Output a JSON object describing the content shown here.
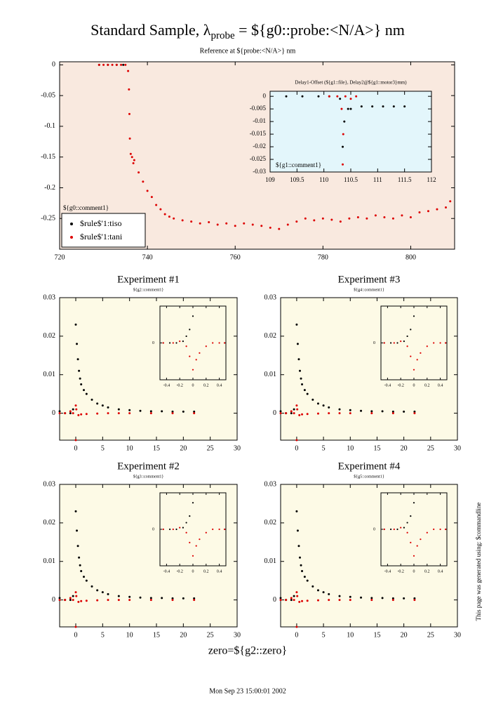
{
  "header": {
    "title": "Standard Sample, λ",
    "title_sub": "probe",
    "title_end": " = ${g0::probe:<N/A>} nm",
    "subtitle": "Reference at ${probe:<N/A>} nm"
  },
  "footer": {
    "zero": "zero=${g2::zero}",
    "date": "Mon Sep 23 15:00:01 2002",
    "side": "This page was generated using: $commandline"
  },
  "chart_data": [
    {
      "type": "scatter",
      "background": "#f9e9df",
      "comment": "${g0::comment1}",
      "legend": "lower left",
      "xlim": [
        720,
        810
      ],
      "ylim": [
        -0.3,
        0.005
      ],
      "xticks": [
        720,
        740,
        760,
        780,
        800
      ],
      "yticks": [
        0,
        -0.05,
        -0.1,
        -0.15,
        -0.2,
        -0.25
      ],
      "series": [
        {
          "name": "$rule$'1:tiso",
          "color": "#000000",
          "x": [
            729,
            731,
            733,
            734.5
          ],
          "values": [
            0,
            0,
            0,
            0
          ]
        },
        {
          "name": "$rule$'1:tani",
          "color": "#dd0000",
          "x": [
            729,
            730,
            731,
            732,
            733,
            734,
            735,
            735.6,
            735.8,
            735.9,
            736,
            736.2,
            736.5,
            736.8,
            737,
            738,
            739,
            740,
            741,
            742,
            743,
            744,
            745,
            746,
            748,
            750,
            752,
            754,
            756,
            758,
            760,
            762,
            764,
            766,
            768,
            770,
            772,
            774,
            776,
            778,
            780,
            782,
            784,
            786,
            788,
            790,
            792,
            794,
            796,
            798,
            800,
            802,
            804,
            806,
            808,
            809
          ],
          "values": [
            0,
            0,
            0,
            0,
            0,
            0,
            0,
            -0.01,
            -0.04,
            -0.08,
            -0.12,
            -0.145,
            -0.15,
            -0.16,
            -0.155,
            -0.175,
            -0.19,
            -0.205,
            -0.215,
            -0.228,
            -0.235,
            -0.243,
            -0.247,
            -0.25,
            -0.253,
            -0.255,
            -0.258,
            -0.256,
            -0.26,
            -0.258,
            -0.262,
            -0.258,
            -0.26,
            -0.262,
            -0.265,
            -0.267,
            -0.26,
            -0.255,
            -0.25,
            -0.253,
            -0.25,
            -0.252,
            -0.255,
            -0.25,
            -0.248,
            -0.25,
            -0.245,
            -0.248,
            -0.25,
            -0.245,
            -0.248,
            -0.24,
            -0.238,
            -0.235,
            -0.232,
            -0.222
          ]
        }
      ]
    },
    {
      "type": "scatter",
      "background": "#e3f6fb",
      "title": "Delay1-Offset (${g1::file}, Delay2@${g1::motor3}mm)",
      "comment": "${g1::comment1}",
      "xlim": [
        109,
        112
      ],
      "ylim": [
        -0.03,
        0.002
      ],
      "xticks": [
        109,
        109.5,
        110,
        110.5,
        111,
        111.5,
        112
      ],
      "yticks": [
        0,
        -0.005,
        -0.01,
        -0.015,
        -0.02,
        -0.025,
        -0.03
      ],
      "series": [
        {
          "color": "#000000",
          "x": [
            109.3,
            109.6,
            109.9,
            110.1,
            110.3,
            110.35,
            110.38,
            110.45,
            110.5,
            110.7,
            110.9,
            111.1,
            111.3,
            111.5
          ],
          "values": [
            0,
            0,
            0,
            0,
            -0.001,
            -0.02,
            -0.01,
            -0.005,
            -0.005,
            -0.004,
            -0.004,
            -0.004,
            -0.004,
            -0.004
          ]
        },
        {
          "color": "#dd0000",
          "x": [
            110.1,
            110.25,
            110.33,
            110.35,
            110.36,
            110.4,
            110.5,
            110.6
          ],
          "values": [
            0,
            0,
            -0.005,
            -0.027,
            -0.015,
            0,
            -0.001,
            0
          ]
        }
      ]
    },
    {
      "type": "scatter",
      "background": "#fdfae6",
      "title": "Experiment #1",
      "subtitle": "${g2::comment1}",
      "xlim": [
        -3,
        30
      ],
      "ylim": [
        -0.007,
        0.03
      ],
      "xticks": [
        0,
        5,
        10,
        15,
        20,
        25,
        30
      ],
      "yticks": [
        0,
        0.01,
        0.02,
        0.03
      ],
      "series": [
        {
          "color": "#000000",
          "x": [
            -3,
            -2,
            -1,
            -0.5,
            0,
            0.2,
            0.4,
            0.6,
            0.8,
            1,
            1.5,
            2,
            3,
            4,
            5,
            6,
            8,
            10,
            12,
            14,
            16,
            18,
            20,
            22
          ],
          "values": [
            0.0005,
            0,
            0,
            0.001,
            0.023,
            0.018,
            0.014,
            0.011,
            0.009,
            0.0075,
            0.006,
            0.005,
            0.0035,
            0.0025,
            0.002,
            0.0015,
            0.001,
            0.0008,
            0.0006,
            0.0005,
            0.0005,
            0.0004,
            0.0004,
            0.0004
          ]
        },
        {
          "color": "#dd0000",
          "x": [
            -3,
            -2,
            -1,
            -0.5,
            0,
            0,
            0.1,
            0.5,
            1,
            2,
            4,
            6,
            8,
            10,
            14,
            18,
            22
          ],
          "values": [
            0,
            0,
            0.0005,
            0,
            -0.007,
            0.002,
            0.001,
            -0.0005,
            -0.0003,
            -0.0002,
            -0.0001,
            0,
            0,
            0,
            0,
            0,
            0
          ]
        }
      ]
    },
    {
      "type": "scatter",
      "background": "#fdfae6",
      "xlim": [
        -0.5,
        0.5
      ],
      "ylim": [
        -0.011,
        0.011
      ],
      "xticks": [
        -0.4,
        -0.2,
        0,
        0.2,
        0.4
      ],
      "yticks": [
        0
      ],
      "series": [
        {
          "color": "#000000",
          "x": [
            -0.45,
            -0.35,
            -0.25,
            -0.15,
            -0.1,
            -0.05,
            0
          ],
          "values": [
            0,
            0,
            0,
            0.0005,
            0.002,
            0.004,
            0.008
          ]
        },
        {
          "color": "#dd0000",
          "x": [
            -0.45,
            -0.3,
            -0.2,
            -0.1,
            -0.05,
            0,
            0.05,
            0.1,
            0.2,
            0.3,
            0.4,
            0.48
          ],
          "values": [
            0,
            0,
            0.0005,
            -0.001,
            -0.004,
            -0.008,
            -0.005,
            -0.003,
            -0.001,
            0,
            0,
            0
          ]
        }
      ]
    },
    {
      "type": "scatter",
      "background": "#fdfae6",
      "title": "Experiment #3",
      "subtitle": "${g4::comment1}",
      "xlim": [
        -3,
        30
      ],
      "ylim": [
        -0.007,
        0.03
      ],
      "xticks": [
        0,
        5,
        10,
        15,
        20,
        25,
        30
      ],
      "yticks": [
        0,
        0.01,
        0.02,
        0.03
      ],
      "series": [
        {
          "color": "#000000",
          "x": [
            -3,
            -2,
            -1,
            -0.5,
            0,
            0.2,
            0.4,
            0.6,
            0.8,
            1,
            1.5,
            2,
            3,
            4,
            5,
            6,
            8,
            10,
            12,
            14,
            16,
            18,
            20,
            22
          ],
          "values": [
            0.0005,
            0,
            0,
            0.001,
            0.023,
            0.018,
            0.014,
            0.011,
            0.009,
            0.0075,
            0.006,
            0.005,
            0.0035,
            0.0025,
            0.002,
            0.0015,
            0.001,
            0.0008,
            0.0006,
            0.0005,
            0.0005,
            0.0004,
            0.0004,
            0.0004
          ]
        },
        {
          "color": "#dd0000",
          "x": [
            -3,
            -2,
            -1,
            -0.5,
            0,
            0,
            0.1,
            0.5,
            1,
            2,
            4,
            6,
            8,
            10,
            14,
            18,
            22
          ],
          "values": [
            0,
            0,
            0.0005,
            0,
            -0.007,
            0.002,
            0.001,
            -0.0005,
            -0.0003,
            -0.0002,
            -0.0001,
            0,
            0,
            0,
            0,
            0,
            0
          ]
        }
      ]
    },
    {
      "type": "scatter",
      "background": "#fdfae6",
      "xlim": [
        -0.5,
        0.5
      ],
      "ylim": [
        -0.011,
        0.011
      ],
      "xticks": [
        -0.4,
        -0.2,
        0,
        0.2,
        0.4
      ],
      "yticks": [
        0
      ],
      "series": [
        {
          "color": "#000000",
          "x": [
            -0.45,
            -0.35,
            -0.25,
            -0.15,
            -0.1,
            -0.05,
            0
          ],
          "values": [
            0,
            0,
            0,
            0.0005,
            0.002,
            0.004,
            0.008
          ]
        },
        {
          "color": "#dd0000",
          "x": [
            -0.45,
            -0.3,
            -0.2,
            -0.1,
            -0.05,
            0,
            0.05,
            0.1,
            0.2,
            0.3,
            0.4,
            0.48
          ],
          "values": [
            0,
            0,
            0.0005,
            -0.001,
            -0.004,
            -0.008,
            -0.005,
            -0.003,
            -0.001,
            0,
            0,
            0
          ]
        }
      ]
    },
    {
      "type": "scatter",
      "background": "#fdfae6",
      "title": "Experiment #2",
      "subtitle": "${g3::comment1}",
      "xlim": [
        -3,
        30
      ],
      "ylim": [
        -0.007,
        0.03
      ],
      "xticks": [
        0,
        5,
        10,
        15,
        20,
        25,
        30
      ],
      "yticks": [
        0,
        0.01,
        0.02,
        0.03
      ],
      "series": [
        {
          "color": "#000000",
          "x": [
            -3,
            -2,
            -1,
            -0.5,
            0,
            0.2,
            0.4,
            0.6,
            0.8,
            1,
            1.5,
            2,
            3,
            4,
            5,
            6,
            8,
            10,
            12,
            14,
            16,
            18,
            20,
            22
          ],
          "values": [
            0.0005,
            0,
            0,
            0.001,
            0.023,
            0.018,
            0.014,
            0.011,
            0.009,
            0.0075,
            0.006,
            0.005,
            0.0035,
            0.0025,
            0.002,
            0.0015,
            0.001,
            0.0008,
            0.0006,
            0.0005,
            0.0005,
            0.0004,
            0.0004,
            0.0004
          ]
        },
        {
          "color": "#dd0000",
          "x": [
            -3,
            -2,
            -1,
            -0.5,
            0,
            0,
            0.1,
            0.5,
            1,
            2,
            4,
            6,
            8,
            10,
            14,
            18,
            22
          ],
          "values": [
            0,
            0,
            0.0005,
            0,
            -0.007,
            0.002,
            0.001,
            -0.0005,
            -0.0003,
            -0.0002,
            -0.0001,
            0,
            0,
            0,
            0,
            0,
            0
          ]
        }
      ]
    },
    {
      "type": "scatter",
      "background": "#fdfae6",
      "xlim": [
        -0.5,
        0.5
      ],
      "ylim": [
        -0.011,
        0.011
      ],
      "xticks": [
        -0.4,
        -0.2,
        0,
        0.2,
        0.4
      ],
      "yticks": [
        0
      ],
      "series": [
        {
          "color": "#000000",
          "x": [
            -0.45,
            -0.35,
            -0.25,
            -0.15,
            -0.1,
            -0.05,
            0
          ],
          "values": [
            0,
            0,
            0,
            0.0005,
            0.002,
            0.004,
            0.008
          ]
        },
        {
          "color": "#dd0000",
          "x": [
            -0.45,
            -0.3,
            -0.2,
            -0.1,
            -0.05,
            0,
            0.05,
            0.1,
            0.2,
            0.3,
            0.4,
            0.48
          ],
          "values": [
            0,
            0,
            0.0005,
            -0.001,
            -0.004,
            -0.008,
            -0.005,
            -0.003,
            -0.001,
            0,
            0,
            0
          ]
        }
      ]
    },
    {
      "type": "scatter",
      "background": "#fdfae6",
      "title": "Experiment #4",
      "subtitle": "${g5::comment1}",
      "xlim": [
        -3,
        30
      ],
      "ylim": [
        -0.007,
        0.03
      ],
      "xticks": [
        0,
        5,
        10,
        15,
        20,
        25,
        30
      ],
      "yticks": [
        0,
        0.01,
        0.02,
        0.03
      ],
      "series": [
        {
          "color": "#000000",
          "x": [
            -3,
            -2,
            -1,
            -0.5,
            0,
            0.2,
            0.4,
            0.6,
            0.8,
            1,
            1.5,
            2,
            3,
            4,
            5,
            6,
            8,
            10,
            12,
            14,
            16,
            18,
            20,
            22
          ],
          "values": [
            0.0005,
            0,
            0,
            0.001,
            0.023,
            0.018,
            0.014,
            0.011,
            0.009,
            0.0075,
            0.006,
            0.005,
            0.0035,
            0.0025,
            0.002,
            0.0015,
            0.001,
            0.0008,
            0.0006,
            0.0005,
            0.0005,
            0.0004,
            0.0004,
            0.0004
          ]
        },
        {
          "color": "#dd0000",
          "x": [
            -3,
            -2,
            -1,
            -0.5,
            0,
            0,
            0.1,
            0.5,
            1,
            2,
            4,
            6,
            8,
            10,
            14,
            18,
            22
          ],
          "values": [
            0,
            0,
            0.0005,
            0,
            -0.007,
            0.002,
            0.001,
            -0.0005,
            -0.0003,
            -0.0002,
            -0.0001,
            0,
            0,
            0,
            0,
            0,
            0
          ]
        }
      ]
    },
    {
      "type": "scatter",
      "background": "#fdfae6",
      "xlim": [
        -0.5,
        0.5
      ],
      "ylim": [
        -0.011,
        0.011
      ],
      "xticks": [
        -0.4,
        -0.2,
        0,
        0.2,
        0.4
      ],
      "yticks": [
        0
      ],
      "series": [
        {
          "color": "#000000",
          "x": [
            -0.45,
            -0.35,
            -0.25,
            -0.15,
            -0.1,
            -0.05,
            0
          ],
          "values": [
            0,
            0,
            0,
            0.0005,
            0.002,
            0.004,
            0.008
          ]
        },
        {
          "color": "#dd0000",
          "x": [
            -0.45,
            -0.3,
            -0.2,
            -0.1,
            -0.05,
            0,
            0.05,
            0.1,
            0.2,
            0.3,
            0.4,
            0.48
          ],
          "values": [
            0,
            0,
            0.0005,
            -0.001,
            -0.004,
            -0.008,
            -0.005,
            -0.003,
            -0.001,
            0,
            0,
            0
          ]
        }
      ]
    }
  ]
}
